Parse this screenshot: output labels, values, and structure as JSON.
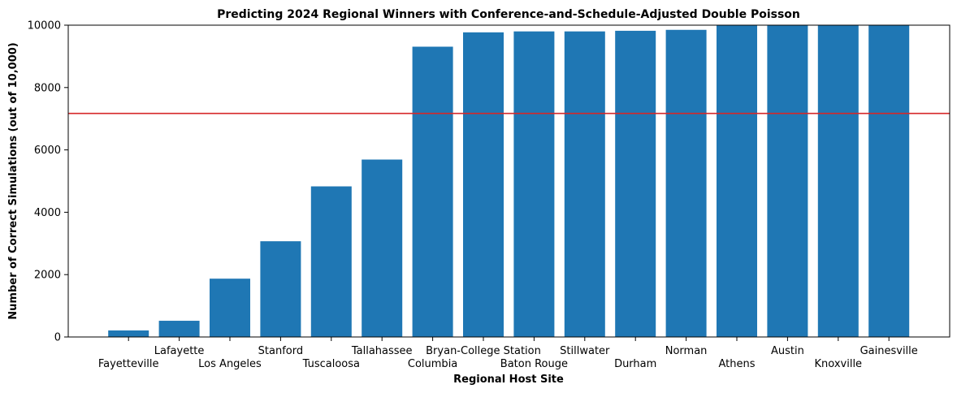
{
  "chart_data": {
    "type": "bar",
    "title": "Predicting 2024 Regional Winners with Conference-and-Schedule-Adjusted Double Poisson",
    "xlabel": "Regional Host Site",
    "ylabel": "Number of Correct Simulations (out of 10,000)",
    "ylim": [
      0,
      10000
    ],
    "yticks": [
      0,
      2000,
      4000,
      6000,
      8000,
      10000
    ],
    "categories": [
      "Fayetteville",
      "Lafayette",
      "Los Angeles",
      "Stanford",
      "Tuscaloosa",
      "Tallahassee",
      "Columbia",
      "Bryan-College Station",
      "Baton Rouge",
      "Stillwater",
      "Durham",
      "Norman",
      "Athens",
      "Austin",
      "Knoxville",
      "Gainesville"
    ],
    "values": [
      210,
      520,
      1870,
      3070,
      4830,
      5690,
      9310,
      9770,
      9800,
      9800,
      9820,
      9850,
      10000,
      10000,
      10000,
      10000
    ],
    "reference_line": 7170,
    "bar_color": "#1f77b4",
    "reference_line_color": "#d62728",
    "grid": false
  }
}
